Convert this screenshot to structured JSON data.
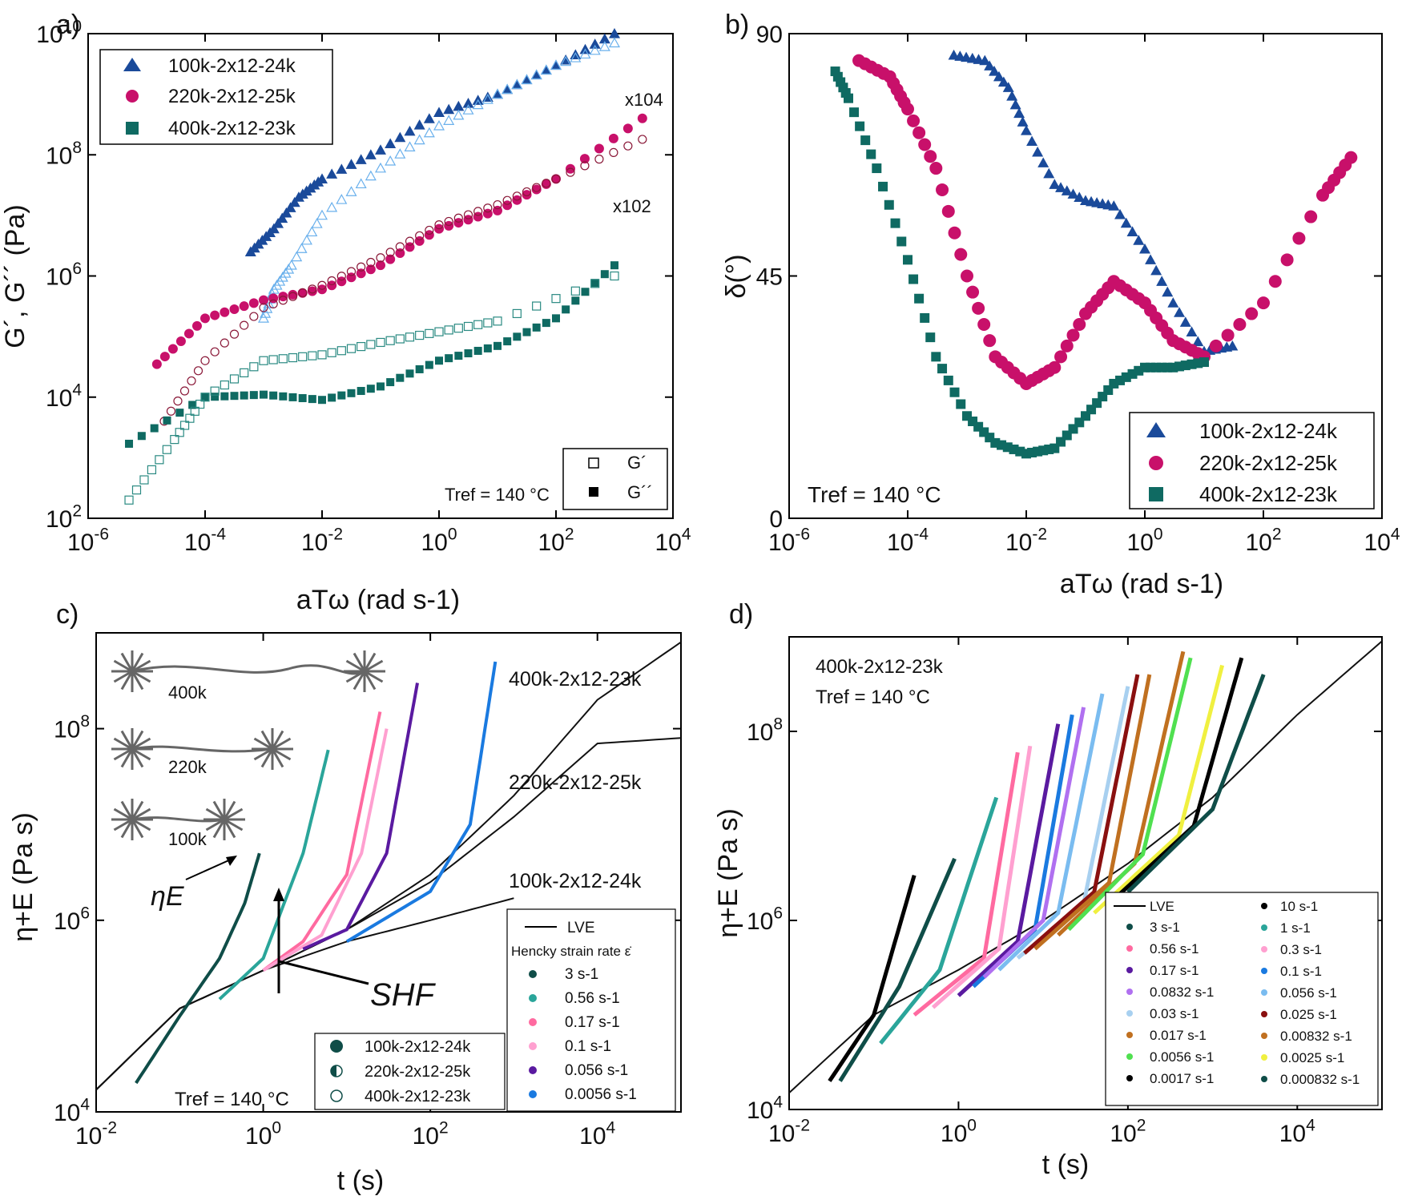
{
  "figure": {
    "panels": [
      "a)",
      "b)",
      "c)",
      "d)"
    ]
  },
  "colors": {
    "100k": "#1a4a9a",
    "100k_light": "#6ab0ec",
    "220k": "#c8106a",
    "220k_open": "#8a1838",
    "400k": "#0f6a62",
    "400k_open": "#2a8a82",
    "lve": "#111111"
  },
  "chart_data": [
    {
      "panel": "a)",
      "type": "scatter",
      "xlabel": "aTω (rad s-1)",
      "ylabel": "G´, G´´ (Pa)",
      "xscale": "log",
      "yscale": "log",
      "xlim": [
        1e-06,
        10000.0
      ],
      "ylim": [
        100.0,
        10000000000.0
      ],
      "xticks": [
        "10-6",
        "10-4",
        "10-2",
        "100",
        "102",
        "104"
      ],
      "yticks": [
        "102",
        "104",
        "106",
        "108",
        "1010"
      ],
      "annotations": [
        "x104",
        "x102"
      ],
      "tref": "Tref = 140 °C",
      "legend": [
        "100k-2x12-24k",
        "220k-2x12-25k",
        "400k-2x12-23k"
      ],
      "legend_type": [
        "G´",
        "G´´"
      ],
      "series": [
        {
          "name": "100k G´´",
          "x": [
            0.0006,
            0.0015,
            0.004,
            0.01,
            0.1,
            1,
            10,
            100,
            1000
          ],
          "y": [
            2500000.0,
            6000000.0,
            20000000.0,
            40000000.0,
            120000000.0,
            500000000.0,
            1000000000.0,
            3000000000.0,
            10000000000.0
          ]
        },
        {
          "name": "100k G´",
          "x": [
            0.001,
            0.0015,
            0.003,
            0.01,
            0.1,
            1,
            10,
            100,
            1000
          ],
          "y": [
            200000.0,
            600000.0,
            1500000.0,
            10000000.0,
            60000000.0,
            300000000.0,
            1000000000.0,
            3000000000.0,
            7000000000.0
          ]
        },
        {
          "name": "220k G´´",
          "x": [
            1.5e-05,
            0.0001,
            0.001,
            0.01,
            0.1,
            1,
            10,
            100,
            3000
          ],
          "y": [
            35000.0,
            200000.0,
            400000.0,
            600000.0,
            1500000.0,
            6000000.0,
            12000000.0,
            40000000.0,
            400000000.0
          ]
        },
        {
          "name": "220k G´",
          "x": [
            2e-05,
            0.0001,
            0.001,
            0.01,
            0.1,
            1,
            10,
            100,
            3000
          ],
          "y": [
            4000.0,
            40000.0,
            300000.0,
            700000.0,
            2000000.0,
            7000000.0,
            15000000.0,
            40000000.0,
            180000000.0
          ]
        },
        {
          "name": "400k G´´",
          "x": [
            5e-06,
            0.0001,
            0.001,
            0.01,
            0.1,
            1,
            10,
            100,
            1000
          ],
          "y": [
            1700.0,
            10000.0,
            11000.0,
            9000.0,
            15000.0,
            40000.0,
            70000.0,
            200000.0,
            1500000.0
          ]
        },
        {
          "name": "400k G´",
          "x": [
            5e-06,
            3e-05,
            0.0001,
            0.001,
            0.01,
            0.1,
            1,
            10,
            1000
          ],
          "y": [
            200,
            2000.0,
            10000.0,
            40000.0,
            50000.0,
            80000.0,
            120000.0,
            180000.0,
            1000000.0
          ]
        }
      ]
    },
    {
      "panel": "b)",
      "type": "scatter",
      "xlabel": "aTω (rad s-1)",
      "ylabel": "δ(°)",
      "xscale": "log",
      "xlim": [
        1e-06,
        10000.0
      ],
      "ylim": [
        0,
        90
      ],
      "xticks": [
        "10-6",
        "10-4",
        "10-2",
        "100",
        "102",
        "104"
      ],
      "yticks": [
        "0",
        "45",
        "90"
      ],
      "tref": "Tref = 140 °C",
      "legend": [
        "100k-2x12-24k",
        "220k-2x12-25k",
        "400k-2x12-23k"
      ],
      "series": [
        {
          "name": "100k-2x12-24k",
          "x": [
            0.0006,
            0.002,
            0.005,
            0.01,
            0.03,
            0.1,
            0.3,
            1,
            3,
            10,
            30
          ],
          "y": [
            86,
            85,
            80,
            72,
            62,
            59,
            58,
            50,
            40,
            31,
            32
          ]
        },
        {
          "name": "220k-2x12-25k",
          "x": [
            1.5e-05,
            5e-05,
            0.0001,
            0.0003,
            0.001,
            0.003,
            0.01,
            0.03,
            0.1,
            0.3,
            1,
            3,
            10,
            100,
            1000,
            3000
          ],
          "y": [
            85,
            82,
            76,
            65,
            45,
            30,
            25,
            28,
            38,
            44,
            40,
            33,
            30,
            40,
            60,
            67
          ]
        },
        {
          "name": "400k-2x12-23k",
          "x": [
            6e-06,
            1e-05,
            3e-05,
            0.0001,
            0.0003,
            0.001,
            0.003,
            0.01,
            0.03,
            0.1,
            0.3,
            1,
            3,
            10
          ],
          "y": [
            83,
            78,
            65,
            48,
            30,
            19,
            14,
            12,
            13,
            19,
            25,
            28,
            28,
            29
          ]
        }
      ]
    },
    {
      "panel": "c)",
      "type": "line",
      "xlabel": "t (s)",
      "ylabel": "η+E (Pa s)",
      "xscale": "log",
      "yscale": "log",
      "xlim": [
        0.01,
        100000.0
      ],
      "ylim": [
        10000.0,
        1000000000.0
      ],
      "xticks": [
        "10-2",
        "100",
        "102",
        "104"
      ],
      "yticks": [
        "104",
        "106",
        "108"
      ],
      "curve_labels": [
        "400k-2x12-23k",
        "220k-2x12-25k",
        "100k-2x12-24k"
      ],
      "schematic_labels": [
        "400k",
        "220k",
        "100k"
      ],
      "annotations": [
        "ηE",
        "SHF"
      ],
      "tref": "Tref = 140 °C",
      "legend_lve": "LVE",
      "legend_title": "Hencky strain rate ε̇",
      "legend_rates": [
        "3 s-1",
        "0.56 s-1",
        "0.17 s-1",
        "0.1 s-1",
        "0.056 s-1",
        "0.0056 s-1"
      ],
      "legend_samples": [
        "100k-2x12-24k",
        "220k-2x12-25k",
        "400k-2x12-23k"
      ],
      "series": [
        {
          "name": "LVE 400k",
          "x": [
            0.01,
            0.1,
            1,
            10,
            100,
            1000,
            10000,
            100000
          ],
          "y": [
            17000.0,
            120000.0,
            300000.0,
            800000.0,
            3000000.0,
            20000000.0,
            200000000.0,
            800000000.0
          ]
        },
        {
          "name": "LVE 220k",
          "x": [
            0.01,
            0.1,
            1,
            10,
            100,
            1000,
            10000,
            100000
          ],
          "y": [
            17000.0,
            120000.0,
            300000.0,
            800000.0,
            2500000.0,
            12000000.0,
            70000000.0,
            80000000.0
          ]
        },
        {
          "name": "LVE 100k",
          "x": [
            0.01,
            0.1,
            1,
            10,
            100,
            1000
          ],
          "y": [
            17000.0,
            120000.0,
            300000.0,
            600000.0,
            1000000.0,
            1700000.0
          ]
        },
        {
          "name": "400k 3 s-1",
          "x": [
            0.03,
            0.1,
            0.3,
            0.6,
            0.9
          ],
          "y": [
            20000.0,
            100000.0,
            400000.0,
            1500000.0,
            5000000.0
          ]
        },
        {
          "name": "400k 0.56 s-1",
          "x": [
            0.3,
            1,
            3,
            6
          ],
          "y": [
            150000.0,
            400000.0,
            5000000.0,
            60000000.0
          ]
        },
        {
          "name": "400k 0.17 s-1",
          "x": [
            1,
            3,
            10,
            25
          ],
          "y": [
            300000.0,
            600000.0,
            3000000.0,
            150000000.0
          ]
        },
        {
          "name": "400k 0.1 s-1",
          "x": [
            1,
            5,
            15,
            30
          ],
          "y": [
            300000.0,
            700000.0,
            5000000.0,
            100000000.0
          ]
        },
        {
          "name": "400k 0.056 s-1",
          "x": [
            3,
            10,
            30,
            70
          ],
          "y": [
            500000.0,
            800000.0,
            5000000.0,
            300000000.0
          ]
        },
        {
          "name": "400k 0.0056 s-1",
          "x": [
            10,
            100,
            300,
            600
          ],
          "y": [
            600000.0,
            2000000.0,
            10000000.0,
            500000000.0
          ]
        }
      ]
    },
    {
      "panel": "d)",
      "type": "line",
      "xlabel": "t (s)",
      "ylabel": "η+E (Pa s)",
      "xscale": "log",
      "yscale": "log",
      "xlim": [
        0.01,
        100000.0
      ],
      "ylim": [
        10000.0,
        1000000000.0
      ],
      "xticks": [
        "10-2",
        "100",
        "102",
        "104"
      ],
      "yticks": [
        "104",
        "106",
        "108"
      ],
      "sample": "400k-2x12-23k",
      "tref": "Tref = 140 °C",
      "legend_lve": "LVE",
      "legend_left": [
        "3 s-1",
        "0.56 s-1",
        "0.17 s-1",
        "0.0832  s-1",
        "0.03 s-1",
        "0.017 s-1",
        "0.0056 s-1",
        "0.0017 s-1"
      ],
      "legend_right": [
        "10 s-1",
        "1 s-1",
        "0.3 s-1",
        "0.1 s-1",
        "0.056 s-1",
        "0.025 s-1",
        "0.00832 s-1",
        "0.0025 s-1",
        "0.000832 s-1"
      ],
      "series": [
        {
          "name": "LVE",
          "x": [
            0.01,
            0.1,
            1,
            10,
            100,
            1000,
            10000,
            100000
          ],
          "y": [
            15000.0,
            100000.0,
            300000.0,
            1000000.0,
            4000000.0,
            20000000.0,
            150000000.0,
            900000000.0
          ]
        },
        {
          "name": "10 s-1",
          "x": [
            0.03,
            0.1,
            0.3
          ],
          "y": [
            20000.0,
            100000.0,
            3000000.0
          ]
        },
        {
          "name": "3 s-1",
          "x": [
            0.04,
            0.2,
            0.9
          ],
          "y": [
            20000.0,
            200000.0,
            4500000.0
          ]
        },
        {
          "name": "1 s-1",
          "x": [
            0.12,
            0.6,
            2.8
          ],
          "y": [
            50000.0,
            300000.0,
            20000000.0
          ]
        },
        {
          "name": "0.56 s-1",
          "x": [
            0.3,
            2,
            5
          ],
          "y": [
            100000.0,
            400000.0,
            60000000.0
          ]
        },
        {
          "name": "0.3 s-1",
          "x": [
            0.5,
            3,
            7
          ],
          "y": [
            120000.0,
            500000.0,
            70000000.0
          ]
        },
        {
          "name": "0.17 s-1",
          "x": [
            1,
            5,
            15
          ],
          "y": [
            160000.0,
            600000.0,
            120000000.0
          ]
        },
        {
          "name": "0.1 s-1",
          "x": [
            1.5,
            8,
            22
          ],
          "y": [
            200000.0,
            800000.0,
            150000000.0
          ]
        },
        {
          "name": "0.0832 s-1",
          "x": [
            2,
            10,
            30
          ],
          "y": [
            250000.0,
            1000000.0,
            180000000.0
          ]
        },
        {
          "name": "0.056 s-1",
          "x": [
            3,
            15,
            50
          ],
          "y": [
            300000.0,
            1200000.0,
            250000000.0
          ]
        },
        {
          "name": "0.03 s-1",
          "x": [
            5,
            30,
            100
          ],
          "y": [
            400000.0,
            1500000.0,
            300000000.0
          ]
        },
        {
          "name": "0.025 s-1",
          "x": [
            6,
            40,
            130
          ],
          "y": [
            450000.0,
            2000000.0,
            400000000.0
          ]
        },
        {
          "name": "0.017 s-1",
          "x": [
            8,
            60,
            180
          ],
          "y": [
            500000.0,
            2500000.0,
            400000000.0
          ]
        },
        {
          "name": "0.00832 s-1",
          "x": [
            15,
            120,
            450
          ],
          "y": [
            700000.0,
            4000000.0,
            700000000.0
          ]
        },
        {
          "name": "0.0056 s-1",
          "x": [
            20,
            150,
            550
          ],
          "y": [
            800000.0,
            5000000.0,
            600000000.0
          ]
        },
        {
          "name": "0.0025 s-1",
          "x": [
            40,
            400,
            1300
          ],
          "y": [
            1200000.0,
            8000000.0,
            500000000.0
          ]
        },
        {
          "name": "0.0017 s-1",
          "x": [
            60,
            600,
            2200
          ],
          "y": [
            1500000.0,
            10000000.0,
            600000000.0
          ]
        },
        {
          "name": "0.000832 s-1",
          "x": [
            100,
            1000,
            4000
          ],
          "y": [
            2000000.0,
            15000000.0,
            400000000.0
          ]
        }
      ]
    }
  ]
}
